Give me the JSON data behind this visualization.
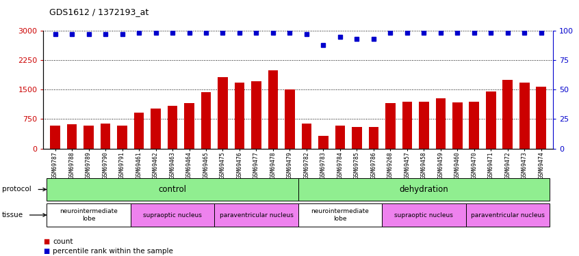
{
  "title": "GDS1612 / 1372193_at",
  "samples": [
    "GSM69787",
    "GSM69788",
    "GSM69789",
    "GSM69790",
    "GSM69791",
    "GSM69461",
    "GSM69462",
    "GSM69463",
    "GSM69464",
    "GSM69465",
    "GSM69475",
    "GSM69476",
    "GSM69477",
    "GSM69478",
    "GSM69479",
    "GSM69782",
    "GSM69783",
    "GSM69784",
    "GSM69785",
    "GSM69786",
    "GSM69268",
    "GSM69457",
    "GSM69458",
    "GSM69459",
    "GSM69460",
    "GSM69470",
    "GSM69471",
    "GSM69472",
    "GSM69473",
    "GSM69474"
  ],
  "counts": [
    580,
    620,
    590,
    640,
    590,
    920,
    1020,
    1080,
    1150,
    1430,
    1820,
    1680,
    1720,
    2000,
    1500,
    630,
    330,
    580,
    540,
    540,
    1160,
    1200,
    1190,
    1280,
    1170,
    1200,
    1450,
    1750,
    1680,
    1570
  ],
  "percentile_ranks": [
    97,
    97,
    97,
    97,
    97,
    98,
    98,
    98,
    98,
    98,
    98,
    98,
    98,
    98,
    98,
    97,
    88,
    95,
    93,
    93,
    98,
    98,
    98,
    98,
    98,
    98,
    98,
    98,
    98,
    98
  ],
  "bar_color": "#cc0000",
  "dot_color": "#0000cc",
  "ylim_left": [
    0,
    3000
  ],
  "yticks_left": [
    0,
    750,
    1500,
    2250,
    3000
  ],
  "ylim_right": [
    0,
    100
  ],
  "yticks_right": [
    0,
    25,
    50,
    75,
    100
  ],
  "protocol_groups": [
    {
      "label": "control",
      "start": 0,
      "end": 14,
      "color": "#90ee90"
    },
    {
      "label": "dehydration",
      "start": 15,
      "end": 29,
      "color": "#90ee90"
    }
  ],
  "tissue_groups": [
    {
      "label": "neurointermediate\nlobe",
      "start": 0,
      "end": 4,
      "color": "#ffffff"
    },
    {
      "label": "supraoptic nucleus",
      "start": 5,
      "end": 9,
      "color": "#ee82ee"
    },
    {
      "label": "paraventricular nucleus",
      "start": 10,
      "end": 14,
      "color": "#ee82ee"
    },
    {
      "label": "neurointermediate\nlobe",
      "start": 15,
      "end": 19,
      "color": "#ffffff"
    },
    {
      "label": "supraoptic nucleus",
      "start": 20,
      "end": 24,
      "color": "#ee82ee"
    },
    {
      "label": "paraventricular nucleus",
      "start": 25,
      "end": 29,
      "color": "#ee82ee"
    }
  ],
  "grid_color": "#000000",
  "bg_color": "#ffffff",
  "tick_color_left": "#cc0000",
  "tick_color_right": "#0000cc",
  "legend_count_color": "#cc0000",
  "legend_dot_color": "#0000cc",
  "xlim": [
    -0.7,
    29.7
  ]
}
